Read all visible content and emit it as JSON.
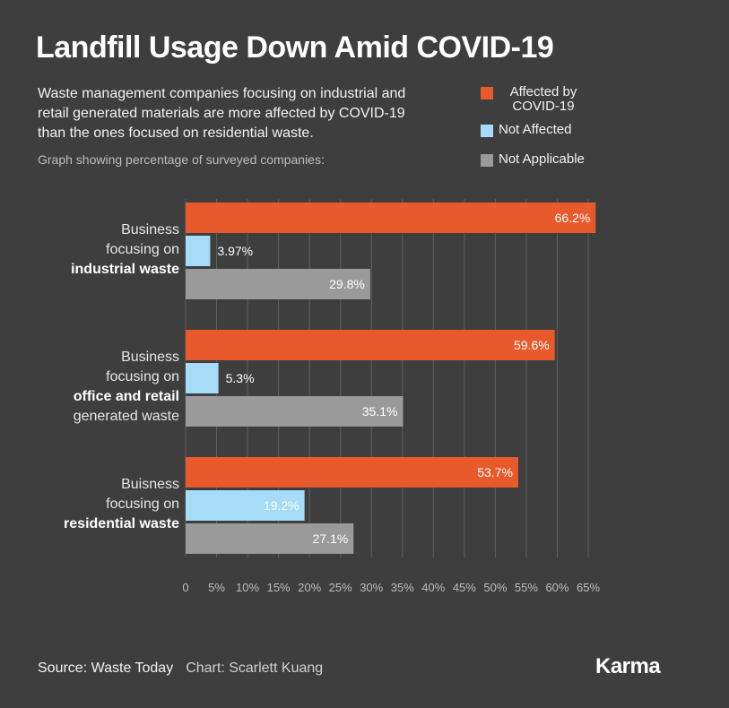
{
  "title": "Landfill Usage Down Amid COVID-19",
  "subtitle_lines": [
    "Waste management companies focusing on industrial and",
    "retail generated materials are more affected by COVID-19",
    "than the ones focused on residential waste."
  ],
  "note": "Graph showing percentage of surveyed companies:",
  "legend": [
    {
      "label": "Affected by COVID-19",
      "color": "#e85a2c"
    },
    {
      "label": "Not Affected",
      "color": "#a6dcf7"
    },
    {
      "label": "Not Applicable",
      "color": "#9a9a9a"
    }
  ],
  "group_labels": [
    {
      "lines": [
        "Business",
        "focusing on"
      ],
      "bold": "industrial waste",
      "after": ""
    },
    {
      "lines": [
        "Business",
        "focusing on"
      ],
      "bold": "office and retail",
      "after": "generated waste"
    },
    {
      "lines": [
        "Buisness",
        "focusing on"
      ],
      "bold": "residential waste",
      "after": ""
    }
  ],
  "chart_data": {
    "type": "bar",
    "orientation": "horizontal",
    "categories": [
      "Business focusing on industrial waste",
      "Business focusing on office and retail generated waste",
      "Buisness focusing on residential waste"
    ],
    "series": [
      {
        "name": "Affected by COVID-19",
        "color": "#e85a2c",
        "values": [
          66.2,
          59.6,
          53.7
        ],
        "labels": [
          "66.2%",
          "59.6%",
          "53.7%"
        ]
      },
      {
        "name": "Not Affected",
        "color": "#a6dcf7",
        "values": [
          3.97,
          5.3,
          19.2
        ],
        "labels": [
          "3.97%",
          "5.3%",
          "19.2%"
        ]
      },
      {
        "name": "Not Applicable",
        "color": "#9a9a9a",
        "values": [
          29.8,
          35.1,
          27.1
        ],
        "labels": [
          "29.8%",
          "35.1%",
          "27.1%"
        ]
      }
    ],
    "xlim": [
      0,
      65
    ],
    "x_ticks": [
      "0",
      "5%",
      "10%",
      "15%",
      "20%",
      "25%",
      "30%",
      "35%",
      "40%",
      "45%",
      "50%",
      "55%",
      "60%",
      "65%"
    ],
    "grid": "vertical",
    "legend_position": "top-right"
  },
  "footer": {
    "source": "Source: Waste Today",
    "credit": "Chart: Scarlett Kuang"
  },
  "logo": "Karma"
}
